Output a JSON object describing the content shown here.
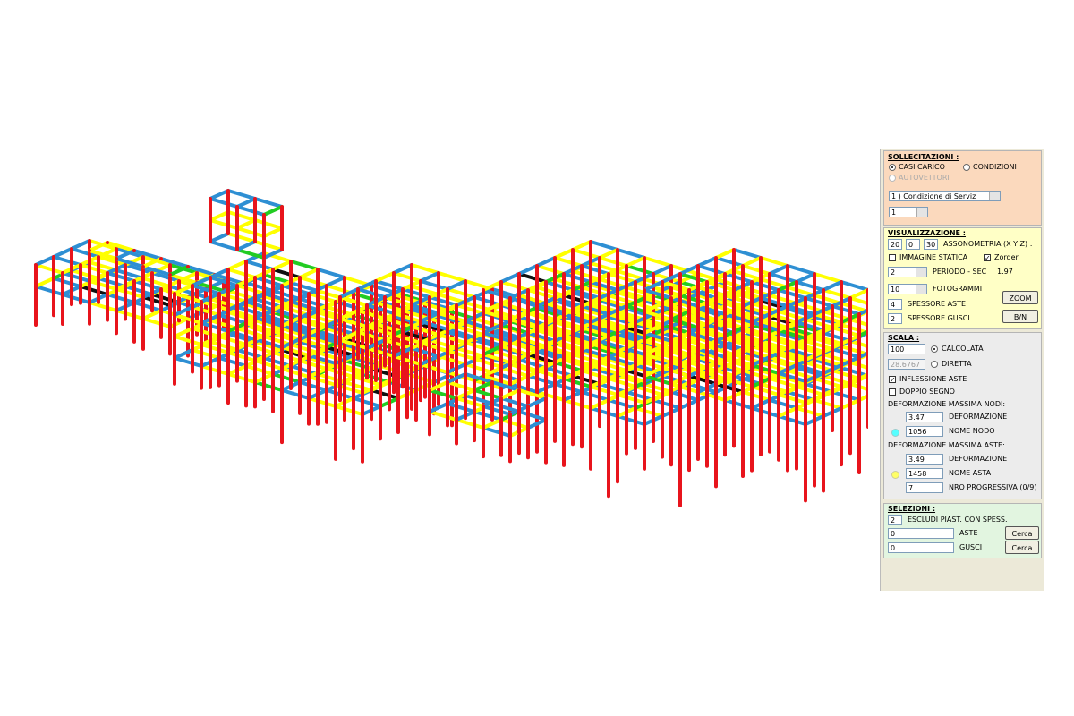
{
  "panel": {
    "sollecitazioni": {
      "title": "SOLLECITAZIONI :",
      "casi_carico": "CASI CARICO",
      "condizioni": "CONDIZIONI",
      "autovettori": "AUTOVETTORI",
      "condizione_select": "1 ) Condizione di Serviz",
      "numero_select": 1
    },
    "visualizzazione": {
      "title": "VISUALIZZAZIONE :",
      "rot_x": 20,
      "rot_y": 0,
      "rot_z": 30,
      "assonometria": "ASSONOMETRIA (X Y Z) :",
      "immagine_statica": "IMMAGINE STATICA",
      "zorder": "Zorder",
      "periodo_select": 2,
      "periodo_label": "PERIODO - SEC",
      "periodo_value": 1.97,
      "fotogrammi_select": 10,
      "fotogrammi_label": "FOTOGRAMMI",
      "zoom": "ZOOM",
      "spessore_aste_value": 4,
      "spessore_aste": "SPESSORE ASTE",
      "spessore_gusci_value": 2,
      "spessore_gusci": "SPESSORE GUSCI",
      "bn": "B/N"
    },
    "scala": {
      "title": "SCALA :",
      "calcolata_value": 100,
      "calcolata": "CALCOLATA",
      "diretta_value": 28.6767,
      "diretta": "DIRETTA",
      "inflessione_aste": "INFLESSIONE ASTE",
      "doppio_segno": "DOPPIO SEGNO",
      "def_nodi_title": "DEFORMAZIONE MASSIMA NODI:",
      "def_nodi_value": 3.47,
      "def_nodi_label": "DEFORMAZIONE",
      "nome_nodo_value": 1056,
      "nome_nodo": "NOME NODO",
      "def_aste_title": "DEFORMAZIONE MASSIMA ASTE:",
      "def_aste_value": 3.49,
      "def_aste_label": "DEFORMAZIONE",
      "nome_asta_value": 1458,
      "nome_asta": "NOME ASTA",
      "nro_value": 7,
      "nro_label": "NRO PROGRESSIVA (0/9)"
    },
    "selezioni": {
      "title": "SELEZIONI :",
      "escludi_value": 2,
      "escludi": "ESCLUDI PIAST. CON SPESS.",
      "aste_value": 0,
      "aste": "ASTE",
      "aste_button": "Cerca",
      "gusci_value": 0,
      "gusci": "GUSCI",
      "gusci_button": "Cerca"
    }
  }
}
